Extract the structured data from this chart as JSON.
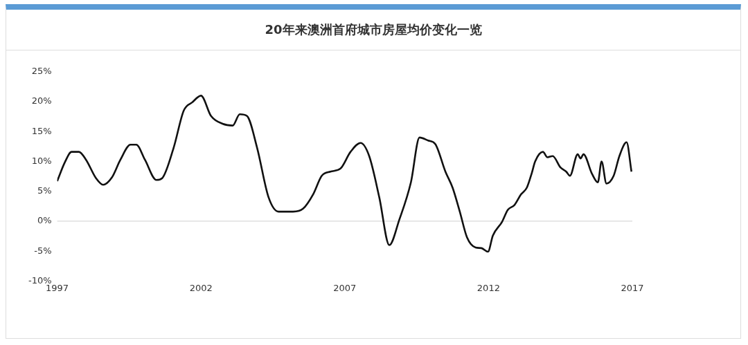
{
  "chart_data": {
    "type": "line",
    "title": "20年来澳洲首府城市房屋均价变化一览",
    "series": [
      {
        "color": "#111111",
        "x": [
          1997.0,
          1997.27,
          1997.5,
          1997.75,
          1998.0,
          1998.35,
          1998.6,
          1998.9,
          1999.2,
          1999.55,
          1999.75,
          2000.05,
          2000.45,
          2000.65,
          2001.05,
          2001.4,
          2001.7,
          2002.0,
          2002.35,
          2002.75,
          2003.1,
          2003.35,
          2003.6,
          2003.95,
          2004.35,
          2004.7,
          2005.2,
          2005.55,
          2005.9,
          2006.2,
          2006.5,
          2006.85,
          2007.2,
          2007.55,
          2007.85,
          2008.2,
          2008.55,
          2008.9,
          2009.3,
          2009.6,
          2009.9,
          2010.15,
          2010.5,
          2010.75,
          2011.0,
          2011.25,
          2011.55,
          2011.75,
          2011.98,
          2012.15,
          2012.47,
          2012.67,
          2012.9,
          2013.13,
          2013.33,
          2013.5,
          2013.62,
          2013.89,
          2014.05,
          2014.23,
          2014.5,
          2014.7,
          2014.83,
          2015.1,
          2015.2,
          2015.3,
          2015.6,
          2015.8,
          2015.93,
          2016.1,
          2016.35,
          2016.55,
          2016.8,
          2016.97
        ],
        "values": [
          6.7,
          9.9,
          11.6,
          11.6,
          10.3,
          7.2,
          6.1,
          7.3,
          10.3,
          12.8,
          12.8,
          10.3,
          6.9,
          7.2,
          12.3,
          18.5,
          19.9,
          21.0,
          17.6,
          16.3,
          16.0,
          17.9,
          17.6,
          12.3,
          4.0,
          1.6,
          1.6,
          2.1,
          4.5,
          7.6,
          8.3,
          8.8,
          11.6,
          13.1,
          10.9,
          4.0,
          -4.0,
          0.3,
          6.5,
          14.0,
          13.5,
          12.9,
          8.3,
          5.6,
          1.6,
          -2.7,
          -4.4,
          -4.5,
          -5.1,
          -2.4,
          -0.1,
          1.9,
          2.7,
          4.5,
          5.6,
          8.0,
          10.0,
          11.6,
          10.7,
          10.9,
          9.0,
          8.3,
          7.6,
          11.2,
          10.5,
          11.2,
          7.9,
          6.5,
          10.0,
          6.3,
          7.6,
          10.9,
          13.2,
          8.3
        ]
      }
    ],
    "xlim": [
      1997,
      2017
    ],
    "xticks": [
      1997,
      2002,
      2007,
      2012,
      2017
    ],
    "ylim": [
      -10,
      25
    ],
    "yticks": [
      {
        "value": -10,
        "label": "-10%"
      },
      {
        "value": -5,
        "label": "-5%"
      },
      {
        "value": 0,
        "label": "0%"
      },
      {
        "value": 5,
        "label": "5%"
      },
      {
        "value": 10,
        "label": "10%"
      },
      {
        "value": 15,
        "label": "15%"
      },
      {
        "value": 20,
        "label": "20%"
      },
      {
        "value": 25,
        "label": "25%"
      }
    ],
    "ref_lines": [
      {
        "axis": "y",
        "value": 0,
        "color": "#d9d9d9"
      }
    ],
    "grid": false,
    "legend": false,
    "marker": "none",
    "line_style": "solid"
  }
}
